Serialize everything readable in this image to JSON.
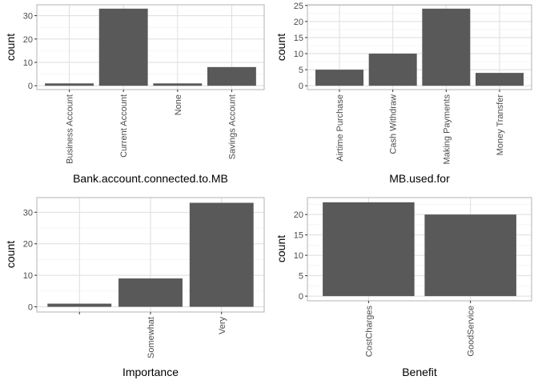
{
  "colors": {
    "bar": "#595959",
    "panel_border": "#b3b3b3",
    "grid_major": "#dedede",
    "grid_minor": "#efefef",
    "tick_text": "#4d4d4d"
  },
  "chart_data": [
    {
      "type": "bar",
      "categories": [
        "Business Account",
        "Current Account",
        "None",
        "Savings Account"
      ],
      "values": [
        1,
        33,
        1,
        8
      ],
      "xlabel": "Bank.account.connected.to.MB",
      "ylabel": "count",
      "ylim": [
        -1.65,
        34.65
      ],
      "yticks": [
        0,
        10,
        20,
        30
      ],
      "grid": true
    },
    {
      "type": "bar",
      "categories": [
        "Airtime Purchase",
        "Cash Withdraw",
        "Making Payments",
        "Money Transfer"
      ],
      "values": [
        5,
        10,
        24,
        4
      ],
      "xlabel": "MB.used.for",
      "ylabel": "count",
      "ylim": [
        -1.2,
        25.2
      ],
      "yticks": [
        0,
        5,
        10,
        15,
        20,
        25
      ],
      "grid": true
    },
    {
      "type": "bar",
      "categories": [
        "",
        "Somewhat",
        "Very"
      ],
      "values": [
        1,
        9,
        33
      ],
      "xlabel": "Importance",
      "ylabel": "count",
      "ylim": [
        -1.65,
        34.65
      ],
      "yticks": [
        0,
        10,
        20,
        30
      ],
      "grid": true
    },
    {
      "type": "bar",
      "categories": [
        "CostCharges",
        "GoodService"
      ],
      "values": [
        23,
        20
      ],
      "xlabel": "Benefit",
      "ylabel": "count",
      "ylim": [
        -1.15,
        24.15
      ],
      "yticks": [
        0,
        5,
        10,
        15,
        20
      ],
      "grid": true
    }
  ]
}
